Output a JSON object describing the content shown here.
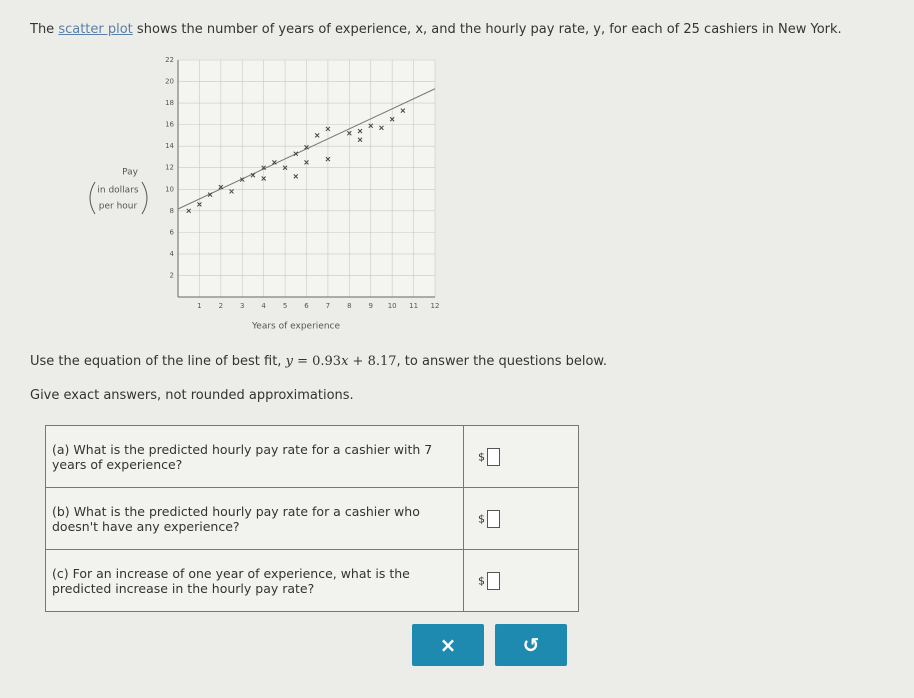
{
  "intro": {
    "start": "The ",
    "link": "scatter plot",
    "end": " shows the number of years of experience, x, and the hourly pay rate, y, for each of 25 cashiers in New York."
  },
  "plot": {
    "type": "scatter",
    "y_label": [
      "Pay",
      "in dollars",
      "per hour"
    ],
    "x_label": "Years of experience",
    "xlim": [
      0,
      12
    ],
    "xticks": [
      1,
      2,
      3,
      4,
      5,
      6,
      7,
      8,
      9,
      10,
      11,
      12
    ],
    "ylim": [
      0,
      22
    ],
    "yticks": [
      2,
      4,
      6,
      8,
      10,
      12,
      14,
      16,
      18,
      20,
      22
    ],
    "grid": true,
    "color": "#444444",
    "x": [
      0.5,
      1,
      1.5,
      2,
      2.5,
      3,
      3.5,
      4,
      4,
      4.5,
      5,
      5.5,
      5.5,
      6,
      6.5,
      6,
      7,
      7,
      8,
      8.5,
      8.5,
      9,
      9.5,
      10,
      10.5
    ],
    "y": [
      8.0,
      8.6,
      9.5,
      10.2,
      9.8,
      10.9,
      11.3,
      12.0,
      11.0,
      12.5,
      12.0,
      11.2,
      13.3,
      13.9,
      15.0,
      12.5,
      12.8,
      15.6,
      15.2,
      15.4,
      14.6,
      15.9,
      15.7,
      16.5,
      17.3
    ]
  },
  "prompt": {
    "start": "Use the equation of the line of best fit, ",
    "equation": {
      "lhs": "y",
      "eq": " = ",
      "slope": 0.93,
      "var": "x",
      "plus": " + ",
      "intercept": 8.17
    },
    "end": ", to answer the questions below."
  },
  "note": "Give exact answers, not rounded approximations.",
  "questions": [
    {
      "label": "(a)",
      "text": "What is the predicted hourly pay rate for a cashier with 7 years of experience?",
      "unit": "$"
    },
    {
      "label": "(b)",
      "text": "What is the predicted hourly pay rate for a cashier who doesn't have any experience?",
      "unit": "$"
    },
    {
      "label": "(c)",
      "text": "For an increase of one year of experience, what is the predicted increase in the hourly pay rate?",
      "unit": "$"
    }
  ],
  "buttons": [
    "×",
    "↺"
  ]
}
